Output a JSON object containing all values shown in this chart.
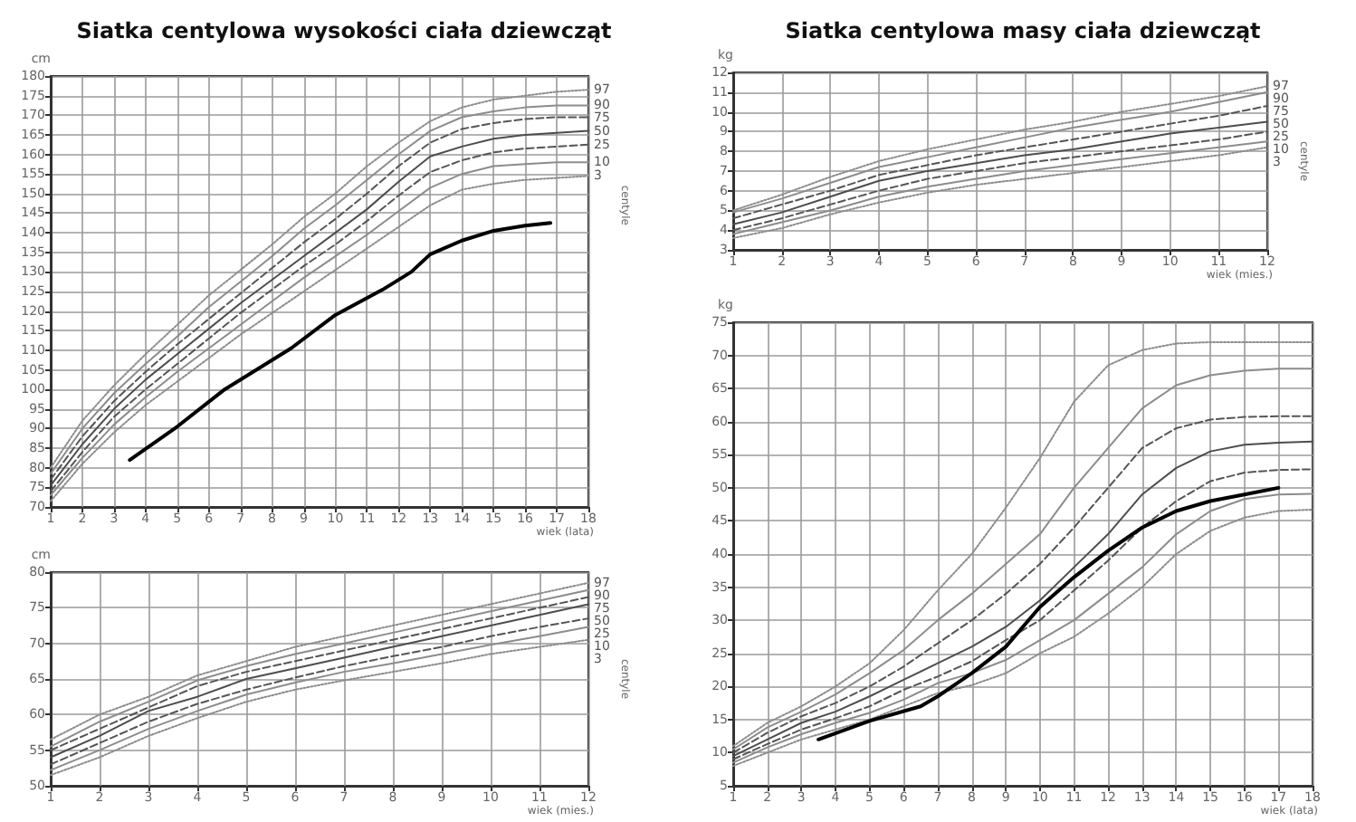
{
  "chart_data": [
    {
      "type": "line",
      "title": "Siatka centylowa wysokości ciała dziewcząt",
      "ylabel": "cm",
      "xlabel": "wiek (lata)",
      "annotations": [
        "centyle"
      ],
      "x": [
        1,
        2,
        3,
        4,
        5,
        6,
        7,
        8,
        9,
        10,
        11,
        12,
        13,
        14,
        15,
        16,
        17,
        18
      ],
      "xlim": [
        1,
        18
      ],
      "ylim": [
        70,
        180
      ],
      "xticks": [
        1,
        2,
        3,
        4,
        5,
        6,
        7,
        8,
        9,
        10,
        11,
        12,
        13,
        14,
        15,
        16,
        17,
        18
      ],
      "yticks": [
        70,
        75,
        80,
        85,
        90,
        95,
        100,
        105,
        110,
        115,
        120,
        125,
        130,
        135,
        140,
        145,
        150,
        155,
        160,
        165,
        170,
        175,
        180
      ],
      "grid": true,
      "series": [
        {
          "name": "97",
          "color": "#8c8c8c",
          "line_style": "dotted",
          "values": [
            80,
            92,
            101,
            109,
            116.5,
            124,
            130.5,
            137,
            144,
            150,
            157,
            163,
            168.5,
            172,
            174,
            175,
            176,
            176.5
          ]
        },
        {
          "name": "90",
          "color": "#8c8c8c",
          "line_style": "solid",
          "values": [
            78.5,
            90,
            99,
            106.5,
            113.5,
            121,
            127.5,
            134,
            141,
            147,
            153.5,
            160,
            166,
            169.5,
            171,
            172,
            172.5,
            172.5
          ]
        },
        {
          "name": "75",
          "color": "#555555",
          "line_style": "dashed",
          "values": [
            77,
            88,
            97,
            104.5,
            111.5,
            118,
            124.5,
            131,
            137.5,
            143.5,
            150,
            157,
            163,
            166.5,
            168,
            169,
            169.5,
            169.5
          ]
        },
        {
          "name": "50",
          "color": "#4d4d4d",
          "line_style": "solid",
          "values": [
            75.5,
            86,
            95,
            102.5,
            109,
            115.5,
            122,
            128,
            134,
            140,
            146,
            153,
            159.5,
            162,
            164,
            165,
            165.5,
            166
          ]
        },
        {
          "name": "25",
          "color": "#555555",
          "line_style": "dashed",
          "values": [
            74,
            84,
            93,
            100,
            106.5,
            113,
            119.5,
            125.5,
            131.5,
            137,
            143,
            149.5,
            155.5,
            158.5,
            160.5,
            161.5,
            162,
            162.5
          ]
        },
        {
          "name": "10",
          "color": "#8c8c8c",
          "line_style": "solid",
          "values": [
            73,
            82.5,
            91,
            98,
            104.5,
            110.5,
            116.5,
            122.5,
            128.5,
            134,
            139.5,
            145.5,
            151.5,
            155,
            157,
            157.5,
            158,
            158
          ]
        },
        {
          "name": "3",
          "color": "#8c8c8c",
          "line_style": "dotted",
          "values": [
            71.5,
            81,
            89,
            96,
            102,
            108,
            114,
            119.5,
            125,
            130.5,
            136,
            141.5,
            147,
            151,
            152.5,
            153.5,
            154,
            154.5
          ]
        },
        {
          "color": "#000000",
          "line_style": "solid",
          "x": [
            3.5,
            5,
            6.5,
            8.6,
            10,
            11.5,
            12.4,
            13,
            14,
            15,
            16,
            16.8
          ],
          "values": [
            82,
            90.5,
            100,
            110.5,
            119,
            125.5,
            130,
            134.5,
            138,
            140.5,
            141.8,
            142.5
          ]
        }
      ]
    },
    {
      "type": "line",
      "ylabel": "cm",
      "xlabel": "wiek (mies.)",
      "annotations": [
        "centyle"
      ],
      "x": [
        1,
        2,
        3,
        4,
        5,
        6,
        7,
        8,
        9,
        10,
        11,
        12
      ],
      "xlim": [
        1,
        12
      ],
      "ylim": [
        50,
        80
      ],
      "xticks": [
        1,
        2,
        3,
        4,
        5,
        6,
        7,
        8,
        9,
        10,
        11,
        12
      ],
      "yticks": [
        50,
        55,
        60,
        65,
        70,
        75,
        80
      ],
      "grid": true,
      "series": [
        {
          "name": "97",
          "color": "#8c8c8c",
          "line_style": "dotted",
          "values": [
            56.5,
            60,
            62.5,
            65.5,
            67.5,
            69.5,
            71,
            72.5,
            74,
            75.5,
            77,
            78.5
          ]
        },
        {
          "name": "90",
          "color": "#8c8c8c",
          "line_style": "solid",
          "values": [
            55.5,
            59,
            61.8,
            64.8,
            66.8,
            68.5,
            70,
            71.5,
            73,
            74.5,
            76,
            77.5
          ]
        },
        {
          "name": "75",
          "color": "#555555",
          "line_style": "dashed",
          "values": [
            55,
            58,
            61,
            64,
            66,
            67.5,
            69,
            70.5,
            72,
            73.5,
            75,
            76.5
          ]
        },
        {
          "name": "50",
          "color": "#4d4d4d",
          "line_style": "solid",
          "values": [
            54,
            57,
            60.5,
            62.5,
            65,
            66.5,
            68,
            69.5,
            71,
            72.5,
            74,
            75.5
          ]
        },
        {
          "name": "25",
          "color": "#555555",
          "line_style": "dashed",
          "values": [
            53,
            56,
            59,
            61.5,
            63.5,
            65.2,
            66.8,
            68.2,
            69.5,
            71,
            72.3,
            73.5
          ]
        },
        {
          "name": "10",
          "color": "#8c8c8c",
          "line_style": "solid",
          "values": [
            52.2,
            55,
            58,
            60.5,
            62.8,
            64.5,
            66,
            67.2,
            68.5,
            69.8,
            71,
            72.3
          ]
        },
        {
          "name": "3",
          "color": "#8c8c8c",
          "line_style": "dotted",
          "values": [
            51.5,
            54,
            57,
            59.5,
            61.8,
            63.5,
            64.8,
            66,
            67.2,
            68.5,
            69.5,
            70.5
          ]
        }
      ]
    },
    {
      "type": "line",
      "ylabel": "kg",
      "xlabel": "wiek (lata)",
      "x": [
        1,
        2,
        3,
        4,
        5,
        6,
        7,
        8,
        9,
        10,
        11,
        12,
        13,
        14,
        15,
        16,
        17,
        18
      ],
      "xlim": [
        1,
        18
      ],
      "ylim": [
        5,
        75
      ],
      "xticks": [
        1,
        2,
        3,
        4,
        5,
        6,
        7,
        8,
        9,
        10,
        11,
        12,
        13,
        14,
        15,
        16,
        17,
        18
      ],
      "yticks": [
        5,
        10,
        15,
        20,
        25,
        30,
        35,
        40,
        45,
        50,
        55,
        60,
        65,
        70,
        75
      ],
      "grid": true,
      "series": [
        {
          "color": "#8c8c8c",
          "line_style": "dotted",
          "values": [
            11,
            14.5,
            17,
            20,
            23.5,
            28.5,
            34.5,
            40,
            47,
            54.5,
            63,
            68.5,
            70.8,
            71.8,
            72,
            72,
            72,
            72
          ]
        },
        {
          "color": "#8c8c8c",
          "line_style": "solid",
          "values": [
            10.5,
            13.8,
            16.2,
            18.8,
            22,
            25.5,
            30,
            34,
            38.5,
            43,
            50,
            56,
            62,
            65.5,
            67,
            67.7,
            68,
            68
          ]
        },
        {
          "color": "#555555",
          "line_style": "dashed",
          "values": [
            10,
            13,
            15.5,
            17.5,
            20,
            23,
            26.5,
            30,
            34,
            38.5,
            44,
            50,
            56,
            59,
            60.3,
            60.7,
            60.8,
            60.8
          ]
        },
        {
          "color": "#4d4d4d",
          "line_style": "solid",
          "values": [
            9.5,
            12,
            14.5,
            16.2,
            18.5,
            21,
            23.5,
            26,
            29,
            33,
            38,
            43,
            49,
            53,
            55.5,
            56.5,
            56.8,
            57
          ]
        },
        {
          "color": "#555555",
          "line_style": "dashed",
          "values": [
            9,
            11.3,
            13.5,
            15.2,
            17,
            19.5,
            21.5,
            23.8,
            27,
            30,
            34.5,
            39,
            44,
            48,
            51,
            52.3,
            52.7,
            52.8
          ]
        },
        {
          "color": "#8c8c8c",
          "line_style": "solid",
          "values": [
            8.5,
            10.8,
            12.8,
            14.5,
            16,
            18,
            20.5,
            22,
            24,
            27,
            30,
            34,
            38,
            43,
            46.5,
            48.3,
            49,
            49.1
          ]
        },
        {
          "color": "#8c8c8c",
          "line_style": "dotted",
          "values": [
            8,
            10,
            12,
            13.5,
            15,
            17,
            19,
            20.2,
            22,
            25,
            27.5,
            31,
            35,
            40,
            43.5,
            45.5,
            46.5,
            46.7
          ]
        },
        {
          "color": "#000000",
          "line_style": "solid",
          "x": [
            3.5,
            5,
            6.5,
            7,
            8,
            9,
            10,
            11,
            12,
            13,
            14,
            15,
            16,
            17
          ],
          "values": [
            12,
            14.8,
            17,
            18.5,
            22,
            26,
            32,
            36.5,
            40.5,
            44,
            46.5,
            48,
            49,
            50
          ]
        }
      ]
    },
    {
      "type": "line",
      "title": "Siatka centylowa masy ciała dziewcząt",
      "ylabel": "kg",
      "xlabel": "wiek (mies.)",
      "annotations": [
        "centyle"
      ],
      "x": [
        1,
        2,
        3,
        4,
        5,
        6,
        7,
        8,
        9,
        10,
        11,
        12
      ],
      "xlim": [
        1,
        12
      ],
      "ylim": [
        3,
        12
      ],
      "xticks": [
        1,
        2,
        3,
        4,
        5,
        6,
        7,
        8,
        9,
        10,
        11,
        12
      ],
      "yticks": [
        3,
        4,
        5,
        6,
        7,
        8,
        9,
        10,
        11,
        12
      ],
      "grid": true,
      "series": [
        {
          "name": "97",
          "color": "#8c8c8c",
          "line_style": "dotted",
          "values": [
            5,
            5.8,
            6.7,
            7.5,
            8.1,
            8.6,
            9.1,
            9.5,
            10,
            10.4,
            10.8,
            11.3
          ]
        },
        {
          "name": "90",
          "color": "#8c8c8c",
          "line_style": "solid",
          "values": [
            4.9,
            5.6,
            6.4,
            7.2,
            7.7,
            8.2,
            8.7,
            9.2,
            9.6,
            10,
            10.5,
            11
          ]
        },
        {
          "name": "75",
          "color": "#555555",
          "line_style": "dashed",
          "values": [
            4.6,
            5.3,
            6,
            6.8,
            7.3,
            7.8,
            8.2,
            8.6,
            9,
            9.4,
            9.8,
            10.3
          ]
        },
        {
          "name": "50",
          "color": "#4d4d4d",
          "line_style": "solid",
          "values": [
            4.3,
            4.9,
            5.7,
            6.5,
            7,
            7.4,
            7.8,
            8.1,
            8.5,
            8.9,
            9.2,
            9.5
          ]
        },
        {
          "name": "25",
          "color": "#555555",
          "line_style": "dashed",
          "values": [
            4,
            4.6,
            5.3,
            6,
            6.6,
            7,
            7.4,
            7.7,
            8,
            8.3,
            8.6,
            9
          ]
        },
        {
          "name": "10",
          "color": "#8c8c8c",
          "line_style": "solid",
          "values": [
            3.8,
            4.4,
            5,
            5.7,
            6.2,
            6.6,
            7,
            7.3,
            7.6,
            7.9,
            8.2,
            8.5
          ]
        },
        {
          "name": "3",
          "color": "#8c8c8c",
          "line_style": "dotted",
          "values": [
            3.6,
            4.1,
            4.8,
            5.4,
            5.9,
            6.3,
            6.6,
            6.9,
            7.2,
            7.5,
            7.8,
            8.2
          ]
        }
      ]
    }
  ]
}
